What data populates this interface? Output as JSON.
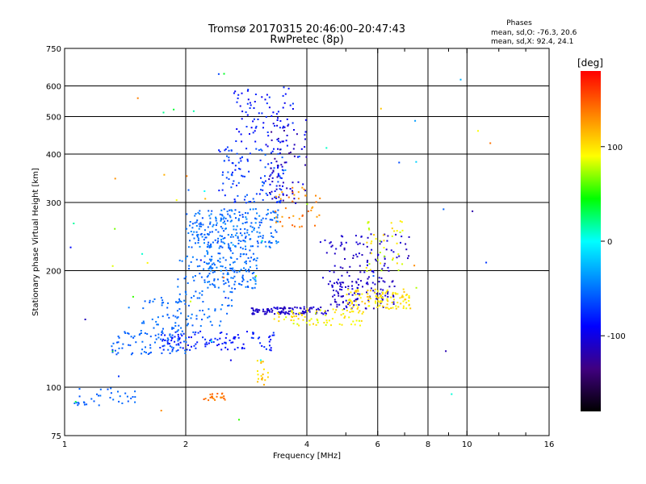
{
  "chart_data": {
    "type": "scatter",
    "title": "Tromsø 20170315 20:46:00–20:47:43",
    "subtitle": "RwPretec (8p)",
    "xlabel": "Frequency [MHz]",
    "ylabel": "Stationary phase Virtual Height [km]",
    "x_scale": "log",
    "y_scale": "log",
    "xlim": [
      1,
      16
    ],
    "ylim": [
      75,
      750
    ],
    "x_ticks": [
      1,
      2,
      4,
      6,
      8,
      10,
      16
    ],
    "x_tick_labels": [
      "1",
      "2",
      "4",
      "6",
      "8",
      "10",
      "16"
    ],
    "x_gridlines": [
      2,
      4,
      6,
      8,
      10
    ],
    "x_minor_ticks": [
      5,
      7,
      9,
      12,
      14
    ],
    "y_ticks": [
      75,
      100,
      200,
      300,
      400,
      500,
      600,
      750
    ],
    "y_tick_labels": [
      "75",
      "100",
      "200",
      "300",
      "400",
      "500",
      "600",
      "750"
    ],
    "y_gridlines": [
      100,
      200,
      300,
      400,
      500,
      600
    ],
    "grid": true,
    "stats": {
      "heading": "Phases",
      "line1": "mean, sd,O: -76.3, 20.6",
      "line2": "mean, sd,X:  92.4, 24.1"
    },
    "colorbar": {
      "label": "[deg]",
      "range": [
        -180,
        180
      ],
      "ticks": [
        100,
        0,
        -100
      ],
      "tick_labels": [
        "100",
        "0",
        "-100"
      ],
      "colors": [
        "#ff0000",
        "#ff8000",
        "#ffff00",
        "#00ff00",
        "#00ffff",
        "#0080ff",
        "#0000ff",
        "#400080",
        "#000000"
      ]
    },
    "clusters": [
      {
        "name": "f-low-trace",
        "f": [
          1.05,
          1.5
        ],
        "h": [
          90,
          100
        ],
        "phase": [
          -62,
          -50
        ],
        "n": 35
      },
      {
        "name": "f1-trace",
        "f": [
          1.3,
          2.0
        ],
        "h": [
          122,
          140
        ],
        "phase": [
          -62,
          -50
        ],
        "n": 70
      },
      {
        "name": "f1-rise",
        "f": [
          1.5,
          2.1
        ],
        "h": [
          135,
          175
        ],
        "phase": [
          -60,
          -48
        ],
        "n": 60
      },
      {
        "name": "f2-lower",
        "f": [
          1.7,
          3.3
        ],
        "h": [
          125,
          140
        ],
        "phase": [
          -95,
          -70
        ],
        "n": 110
      },
      {
        "name": "f-mid-low",
        "f": [
          1.9,
          2.6
        ],
        "h": [
          140,
          220
        ],
        "phase": [
          -60,
          -45
        ],
        "n": 90
      },
      {
        "name": "f2-cluster-250",
        "f": [
          2.0,
          3.4
        ],
        "h": [
          230,
          290
        ],
        "phase": [
          -65,
          -40
        ],
        "n": 240
      },
      {
        "name": "f2-cluster-200",
        "f": [
          2.2,
          3.0
        ],
        "h": [
          180,
          235
        ],
        "phase": [
          -62,
          -42
        ],
        "n": 140
      },
      {
        "name": "f2-upper",
        "f": [
          2.4,
          3.5
        ],
        "h": [
          300,
          420
        ],
        "phase": [
          -85,
          -55
        ],
        "n": 120
      },
      {
        "name": "f2-high",
        "f": [
          2.6,
          3.7
        ],
        "h": [
          420,
          600
        ],
        "phase": [
          -100,
          -70
        ],
        "n": 80
      },
      {
        "name": "x-spike",
        "f": [
          3.2,
          4.0
        ],
        "h": [
          300,
          500
        ],
        "phase": [
          -130,
          -90
        ],
        "n": 70
      },
      {
        "name": "o-trace-160",
        "f": [
          2.9,
          4.5
        ],
        "h": [
          155,
          162
        ],
        "phase": [
          -118,
          -100
        ],
        "n": 110
      },
      {
        "name": "o-trace-rise",
        "f": [
          4.5,
          6.6
        ],
        "h": [
          160,
          190
        ],
        "phase": [
          -118,
          -100
        ],
        "n": 110
      },
      {
        "name": "o-trace-high",
        "f": [
          4.3,
          7.2
        ],
        "h": [
          190,
          250
        ],
        "phase": [
          -120,
          -100
        ],
        "n": 90
      },
      {
        "name": "x-trace-150",
        "f": [
          3.3,
          5.5
        ],
        "h": [
          145,
          160
        ],
        "phase": [
          80,
          110
        ],
        "n": 80
      },
      {
        "name": "x-trace-170",
        "f": [
          5.0,
          7.2
        ],
        "h": [
          160,
          180
        ],
        "phase": [
          85,
          115
        ],
        "n": 110
      },
      {
        "name": "x-trace-upper",
        "f": [
          5.6,
          6.9
        ],
        "h": [
          200,
          270
        ],
        "phase": [
          70,
          110
        ],
        "n": 40
      },
      {
        "name": "x-blob-100",
        "f": [
          2.2,
          2.5
        ],
        "h": [
          93,
          97
        ],
        "phase": [
          130,
          150
        ],
        "n": 22
      },
      {
        "name": "x-blob-110",
        "f": [
          3.0,
          3.2
        ],
        "h": [
          102,
          118
        ],
        "phase": [
          95,
          120
        ],
        "n": 18
      },
      {
        "name": "x-upper-orange",
        "f": [
          3.3,
          4.3
        ],
        "h": [
          260,
          330
        ],
        "phase": [
          120,
          150
        ],
        "n": 40
      },
      {
        "name": "scatter-noise",
        "f": [
          1.0,
          12.0
        ],
        "h": [
          80,
          660
        ],
        "phase": [
          -120,
          150
        ],
        "n": 60
      }
    ]
  }
}
